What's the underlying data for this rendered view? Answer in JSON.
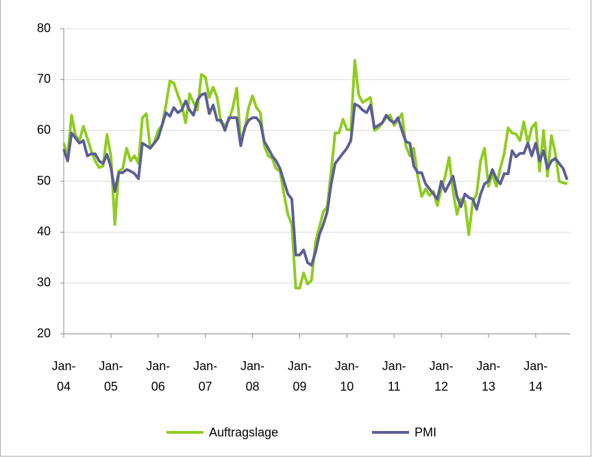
{
  "chart_data": {
    "type": "line",
    "categories": [
      "Jan-04",
      null,
      null,
      null,
      null,
      null,
      null,
      null,
      null,
      null,
      null,
      null,
      "Jan-05",
      null,
      null,
      null,
      null,
      null,
      null,
      null,
      null,
      null,
      null,
      null,
      "Jan-06",
      null,
      null,
      null,
      null,
      null,
      null,
      null,
      null,
      null,
      null,
      null,
      "Jan-07",
      null,
      null,
      null,
      null,
      null,
      null,
      null,
      null,
      null,
      null,
      null,
      "Jan-08",
      null,
      null,
      null,
      null,
      null,
      null,
      null,
      null,
      null,
      null,
      null,
      "Jan-09",
      null,
      null,
      null,
      null,
      null,
      null,
      null,
      null,
      null,
      null,
      null,
      "Jan-10",
      null,
      null,
      null,
      null,
      null,
      null,
      null,
      null,
      null,
      null,
      null,
      "Jan-11",
      null,
      null,
      null,
      null,
      null,
      null,
      null,
      null,
      null,
      null,
      null,
      "Jan-12",
      null,
      null,
      null,
      null,
      null,
      null,
      null,
      null,
      null,
      null,
      null,
      "Jan-13",
      null,
      null,
      null,
      null,
      null,
      null,
      null,
      null,
      null,
      null,
      null,
      "Jan-14",
      null,
      null,
      null,
      null,
      null,
      null,
      null,
      null
    ],
    "series": [
      {
        "name": "Auftragslage",
        "color": "#8fcc1f",
        "values": [
          57.5,
          55,
          63,
          59,
          58,
          60.8,
          58.5,
          56,
          54,
          52.7,
          53,
          59.2,
          55,
          41.5,
          52,
          52.5,
          56.5,
          54,
          55,
          53.5,
          62.5,
          63.3,
          56.5,
          57.5,
          60,
          61,
          65,
          69.7,
          69.3,
          67,
          65,
          61.5,
          67.2,
          65.5,
          64,
          71,
          70.5,
          66.5,
          68.5,
          66.5,
          61.5,
          61,
          62,
          64.5,
          68.3,
          58,
          60,
          64.5,
          66.8,
          64.5,
          63.5,
          57,
          55,
          54.5,
          52.5,
          52,
          47.5,
          43.5,
          41.5,
          29,
          29,
          32,
          29.8,
          30.5,
          38,
          41,
          44,
          45,
          52,
          59.5,
          59.5,
          62.2,
          60.2,
          60,
          73.8,
          67,
          65.5,
          66,
          66.5,
          60,
          60.5,
          61.5,
          62.5,
          63,
          61,
          62,
          63.3,
          57,
          55,
          56.5,
          51,
          47,
          48.5,
          47.2,
          48,
          45.2,
          48.5,
          51,
          54.7,
          48,
          43.5,
          46.5,
          46,
          39.5,
          46,
          47.5,
          54,
          56.5,
          49,
          51.5,
          49,
          52.5,
          55.5,
          60.5,
          59.5,
          59.3,
          58,
          61.7,
          57.5,
          60.5,
          61.5,
          52,
          60,
          51,
          59,
          55.5,
          50,
          49.7,
          49.5
        ]
      },
      {
        "name": "PMI",
        "color": "#5b5e96",
        "values": [
          56.3,
          54,
          59.5,
          58.5,
          57.5,
          58,
          55,
          55.4,
          55.4,
          54,
          53.5,
          55.3,
          52.7,
          48,
          51.7,
          51.7,
          52.3,
          52,
          51.5,
          50.5,
          57.5,
          57,
          56.5,
          57.5,
          58.5,
          61,
          63.5,
          62.8,
          64.5,
          63.5,
          64,
          65.8,
          64,
          63,
          66,
          67,
          67.3,
          63.3,
          65,
          62,
          62,
          60,
          62.5,
          62.5,
          62.5,
          57,
          60.5,
          62,
          62.5,
          62.5,
          61.5,
          57.8,
          56.5,
          55,
          54,
          52.5,
          50,
          47.5,
          46.5,
          35.5,
          35.5,
          36.5,
          34,
          33.5,
          36,
          39.5,
          41.5,
          44,
          49.5,
          53.5,
          54.5,
          55.5,
          56.5,
          58,
          65.2,
          64.8,
          64,
          63.5,
          65,
          60.5,
          61,
          61.5,
          63,
          62,
          61.5,
          62.5,
          60,
          57.8,
          57.5,
          53,
          51.7,
          51.7,
          49.5,
          48.5,
          47.5,
          46.5,
          50,
          48,
          49.5,
          51,
          47,
          45,
          47.5,
          46.8,
          46.5,
          44.5,
          47.5,
          49.5,
          50,
          52.3,
          50.5,
          49.5,
          51.5,
          51.5,
          56,
          54.8,
          55.5,
          55.5,
          57.5,
          55,
          57.5,
          54,
          56,
          52.5,
          54,
          54.5,
          53.5,
          52.5,
          50.3
        ]
      }
    ],
    "ylim": [
      20,
      80
    ],
    "yticks": [
      20,
      30,
      40,
      50,
      60,
      70,
      80
    ],
    "grid": true,
    "legend": "bottom"
  }
}
